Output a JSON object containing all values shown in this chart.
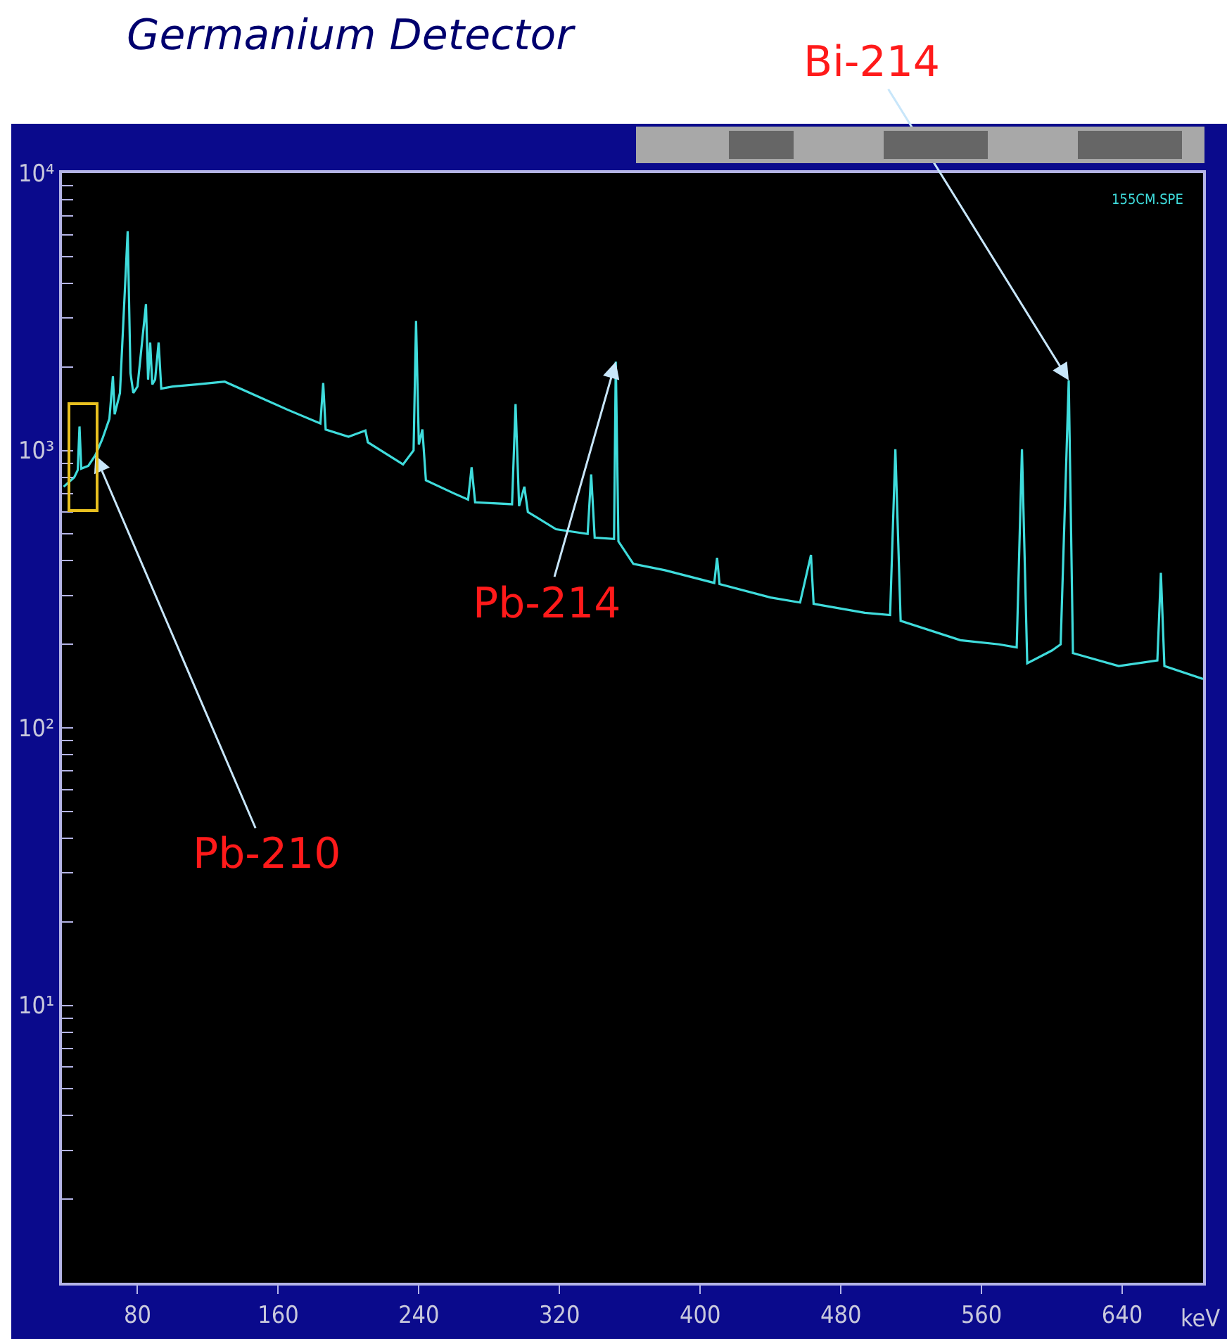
{
  "chart_data": {
    "type": "line",
    "title": "Germanium Detector",
    "xlabel": "keV",
    "log": "y",
    "xlim": [
      37,
      686
    ],
    "xticks": [
      80,
      160,
      240,
      320,
      400,
      480,
      560,
      640
    ],
    "ylim": [
      1,
      10000
    ],
    "yticks": [
      {
        "value": 10,
        "label": "10¹"
      },
      {
        "value": 100,
        "label": "10²"
      },
      {
        "value": 1000,
        "label": "10³"
      },
      {
        "value": 10000,
        "label": "10⁴"
      },
      {
        "value": 2,
        "label": null
      },
      {
        "value": 3,
        "label": null
      },
      {
        "value": 4,
        "label": null
      },
      {
        "value": 5,
        "label": null
      },
      {
        "value": 6,
        "label": null
      },
      {
        "value": 7,
        "label": null
      },
      {
        "value": 8,
        "label": null
      },
      {
        "value": 9,
        "label": null
      },
      {
        "value": 20,
        "label": null
      },
      {
        "value": 30,
        "label": null
      },
      {
        "value": 40,
        "label": null
      },
      {
        "value": 50,
        "label": null
      },
      {
        "value": 60,
        "label": null
      },
      {
        "value": 70,
        "label": null
      },
      {
        "value": 80,
        "label": null
      },
      {
        "value": 90,
        "label": null
      },
      {
        "value": 200,
        "label": null
      },
      {
        "value": 300,
        "label": null
      },
      {
        "value": 400,
        "label": null
      },
      {
        "value": 500,
        "label": null
      },
      {
        "value": 600,
        "label": null
      },
      {
        "value": 700,
        "label": null
      },
      {
        "value": 800,
        "label": null
      },
      {
        "value": 900,
        "label": null
      },
      {
        "value": 2000,
        "label": null
      },
      {
        "value": 3000,
        "label": null
      },
      {
        "value": 4000,
        "label": null
      },
      {
        "value": 5000,
        "label": null
      },
      {
        "value": 6000,
        "label": null
      },
      {
        "value": 7000,
        "label": null
      },
      {
        "value": 8000,
        "label": null
      },
      {
        "value": 9000,
        "label": null
      }
    ],
    "x": [
      38,
      44,
      46,
      47,
      48,
      52,
      56,
      60,
      64,
      66,
      67,
      70,
      72.8,
      74.4,
      76,
      77.6,
      80,
      84.8,
      86,
      87.2,
      88.4,
      90,
      92,
      93.5,
      100,
      113.6,
      129.6,
      150,
      165.6,
      184,
      185.6,
      187,
      200,
      209.6,
      211,
      231,
      237,
      238.4,
      240,
      242,
      244,
      260,
      268,
      270,
      272,
      293,
      295,
      297,
      300,
      302,
      318,
      336,
      338,
      340,
      351,
      352,
      353.5,
      362,
      380,
      408,
      409.6,
      411,
      440,
      456.8,
      463,
      464.5,
      493.6,
      508,
      511,
      514,
      548,
      570,
      580,
      583,
      586,
      600,
      605,
      609.6,
      612,
      638,
      660,
      662,
      664,
      686
    ],
    "series": [
      {
        "color": "#3fdcdc",
        "values": [
          740,
          800,
          850,
          1220,
          860,
          880,
          960,
          1100,
          1300,
          1850,
          1350,
          1610,
          3790,
          6170,
          1900,
          1610,
          1700,
          3370,
          1800,
          2450,
          1730,
          1800,
          2450,
          1670,
          1700,
          1730,
          1770,
          1550,
          1400,
          1250,
          1750,
          1190,
          1120,
          1180,
          1070,
          890,
          1000,
          2930,
          1050,
          1190,
          780,
          700,
          665,
          870,
          650,
          640,
          1470,
          630,
          740,
          600,
          520,
          500,
          820,
          485,
          480,
          2090,
          470,
          390,
          370,
          333,
          410,
          330,
          295,
          283,
          420,
          280,
          260,
          255,
          1010,
          243,
          207,
          200,
          195,
          1010,
          171,
          190,
          200,
          1790,
          186,
          167,
          175,
          362,
          167,
          150
        ]
      }
    ],
    "annotations": [
      {
        "text": "Pb-210",
        "x": 56,
        "y": 960
      },
      {
        "text": "Pb-214",
        "x": 352,
        "y": 2090
      },
      {
        "text": "Bi-214",
        "x": 609.6,
        "y": 1790
      },
      "155CM.SPE"
    ]
  }
}
